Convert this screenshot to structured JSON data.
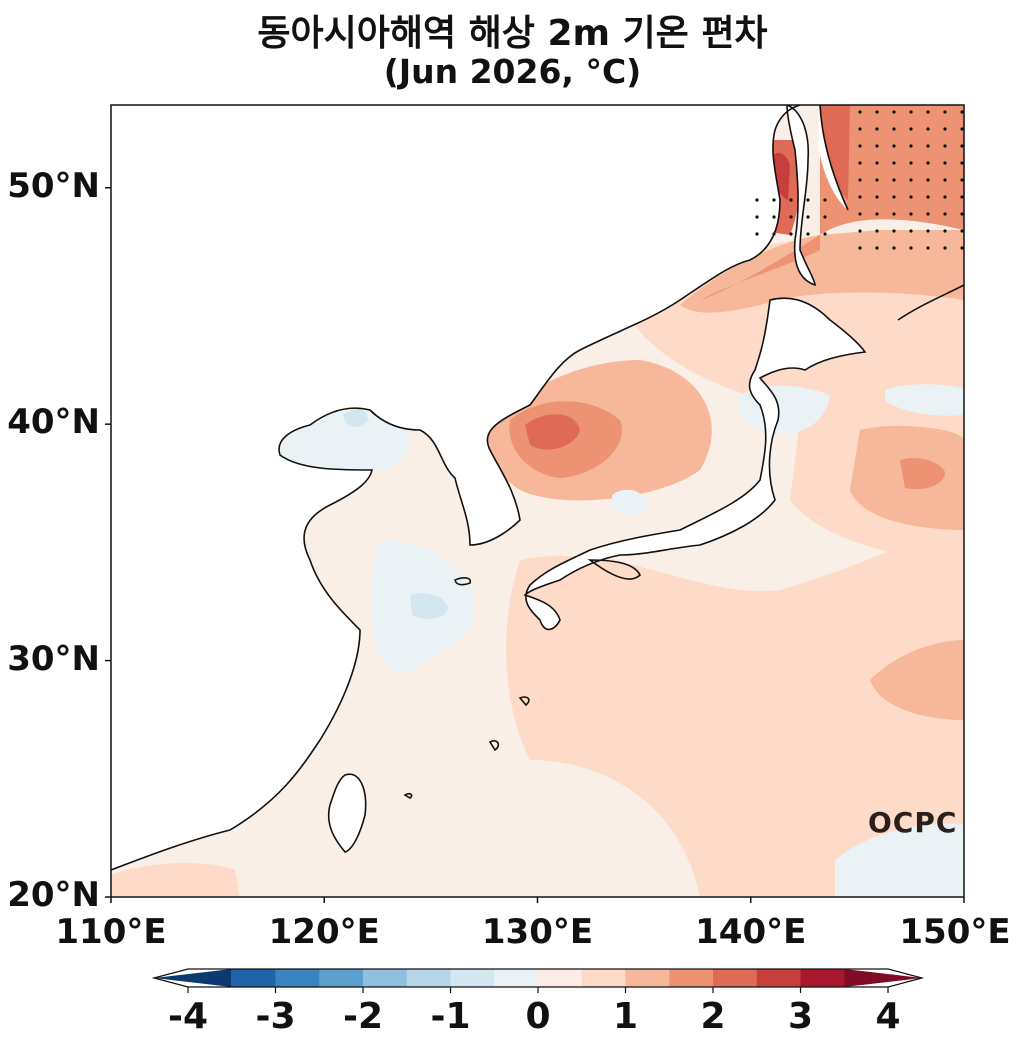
{
  "title_line1": "동아시아해역 해상 2m 기온 편차",
  "title_line2": "(Jun 2026, °C)",
  "logo": "OCPC",
  "map": {
    "lon_range": [
      110,
      150
    ],
    "lat_range": [
      20,
      53.5
    ],
    "lat_ticks": [
      {
        "value": 50,
        "label": "50°N"
      },
      {
        "value": 40,
        "label": "40°N"
      },
      {
        "value": 30,
        "label": "30°N"
      },
      {
        "value": 20,
        "label": "20°N"
      }
    ],
    "lon_ticks": [
      {
        "value": 110,
        "label": "110°E"
      },
      {
        "value": 120,
        "label": "120°E"
      },
      {
        "value": 130,
        "label": "130°E"
      },
      {
        "value": 140,
        "label": "140°E"
      },
      {
        "value": 150,
        "label": "150°E"
      }
    ]
  },
  "colorbar": {
    "levels": [
      -4,
      -3.5,
      -3,
      -2.5,
      -2,
      -1.5,
      -1,
      -0.5,
      0,
      0.5,
      1,
      1.5,
      2,
      2.5,
      3,
      3.5,
      4
    ],
    "colors": [
      "#0a3a70",
      "#1f63a8",
      "#3a84bf",
      "#5d9fcd",
      "#8fc1de",
      "#b5d6e8",
      "#d4e6f0",
      "#eaf2f6",
      "#fbede4",
      "#fddbc8",
      "#f7b79a",
      "#ed9273",
      "#df6a55",
      "#c73f3d",
      "#a9172e",
      "#7f0b24"
    ],
    "tick_labels": [
      {
        "value": -4,
        "label": "-4"
      },
      {
        "value": -3,
        "label": "-3"
      },
      {
        "value": -2,
        "label": "-2"
      },
      {
        "value": -1,
        "label": "-1"
      },
      {
        "value": 0,
        "label": "0"
      },
      {
        "value": 1,
        "label": "1"
      },
      {
        "value": 2,
        "label": "2"
      },
      {
        "value": 3,
        "label": "3"
      },
      {
        "value": 4,
        "label": "4"
      }
    ]
  }
}
